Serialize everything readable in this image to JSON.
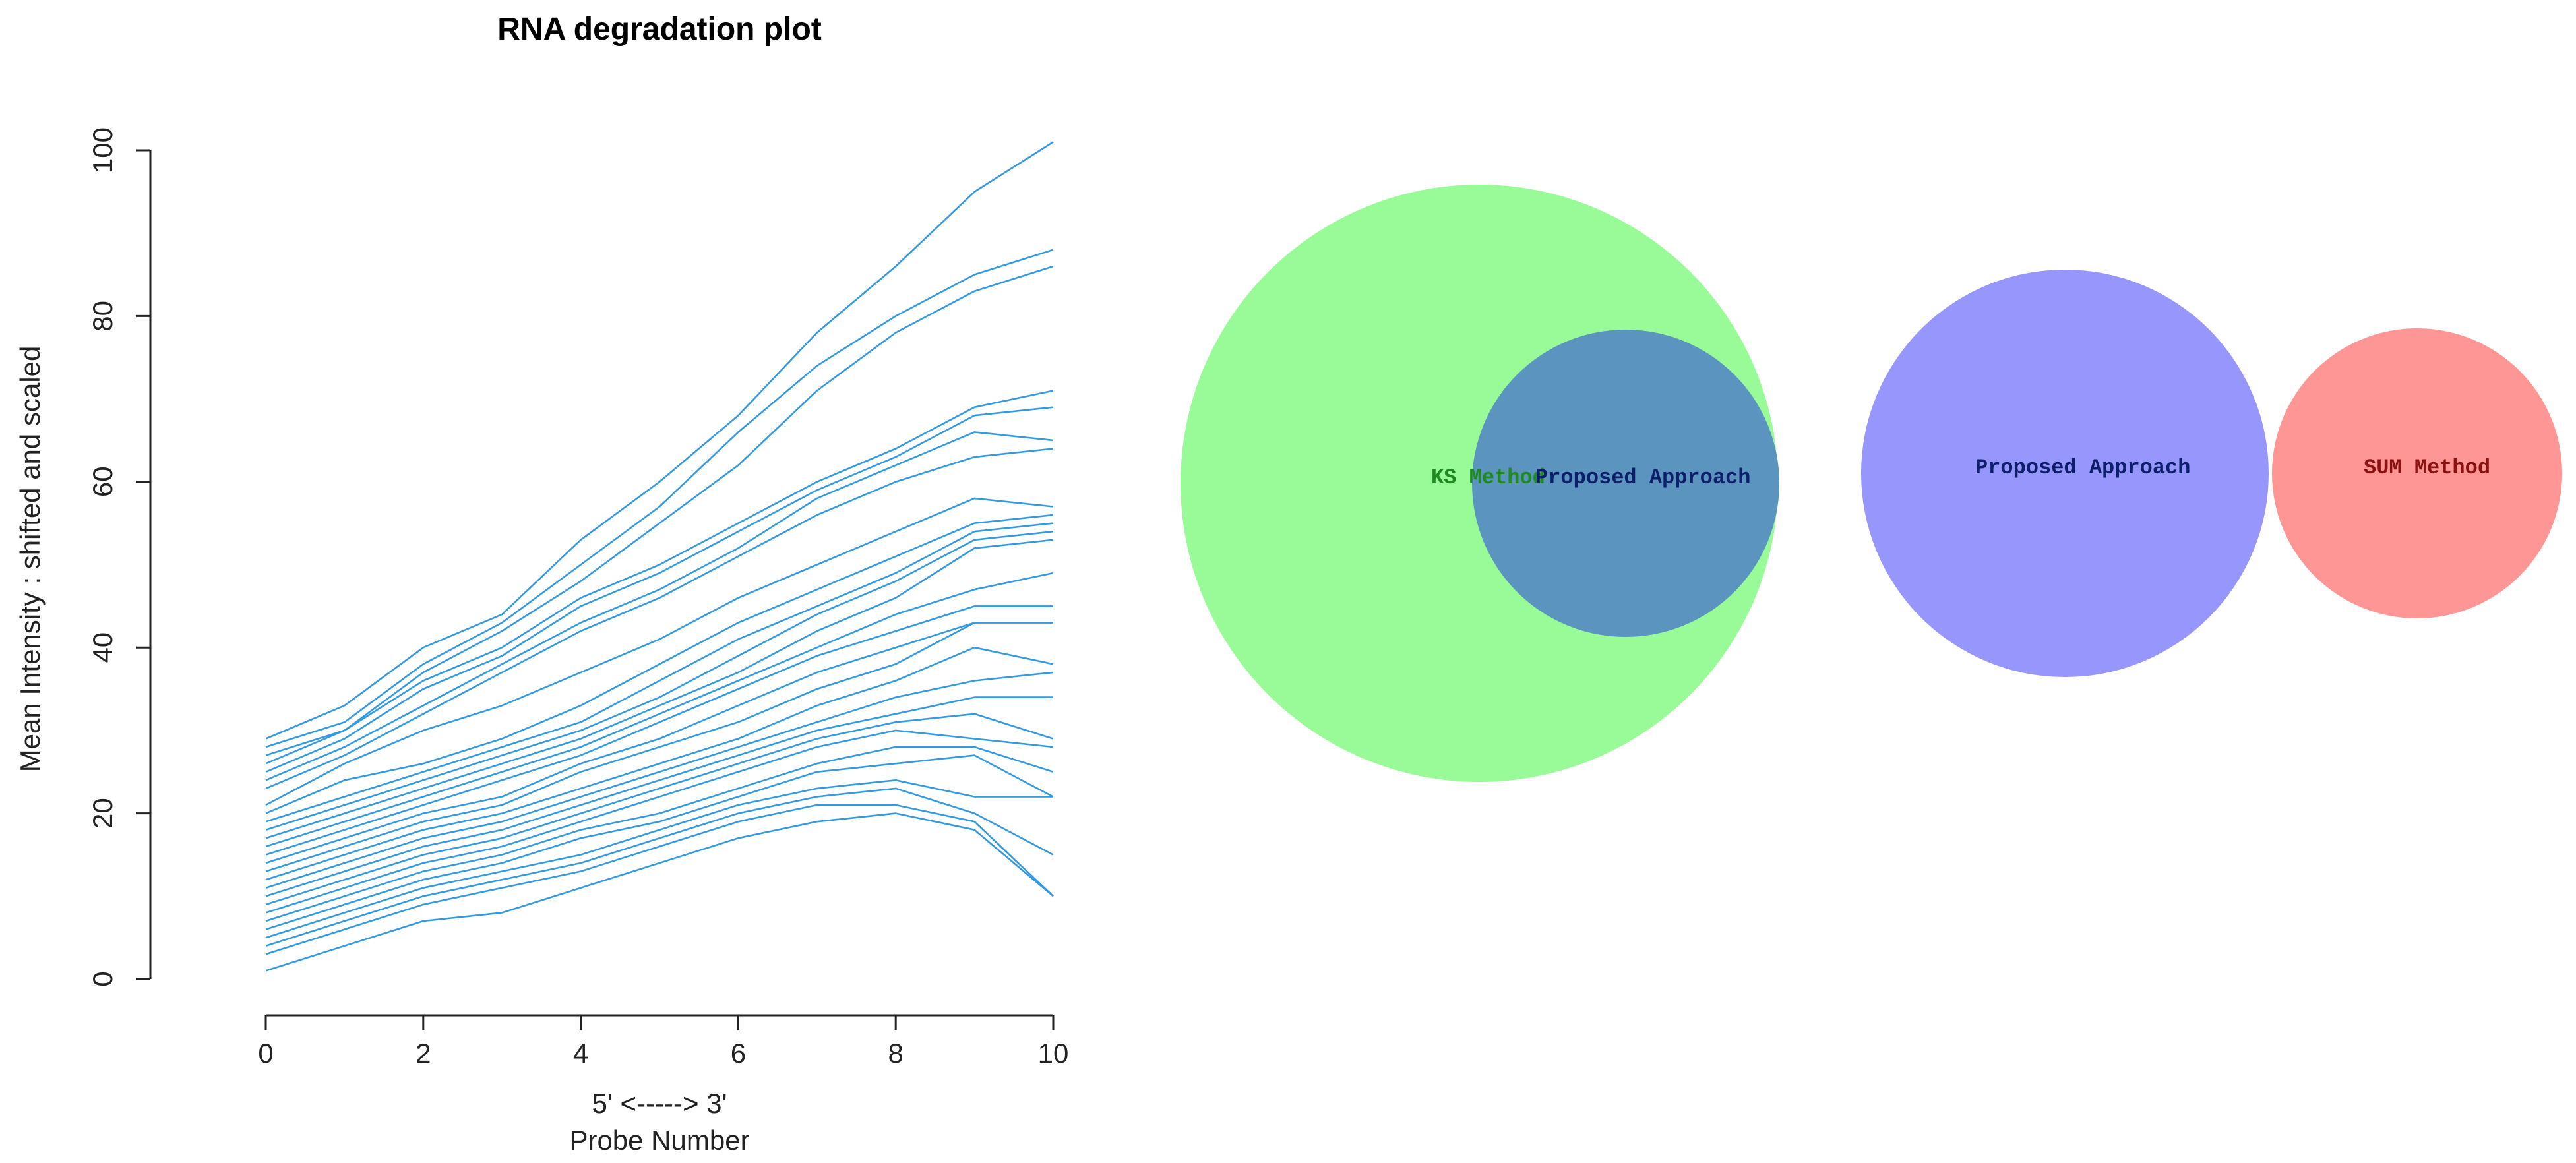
{
  "chart_data": [
    {
      "type": "line",
      "title": "RNA degradation plot",
      "xlabel_line1": "5' <-----> 3'",
      "xlabel_line2": "Probe Number",
      "ylabel": "Mean Intensity : shifted and scaled",
      "xlim": [
        0,
        10
      ],
      "ylim": [
        0,
        100
      ],
      "x_ticks": [
        "0",
        "2",
        "4",
        "6",
        "8",
        "10"
      ],
      "y_ticks": [
        "0",
        "20",
        "40",
        "60",
        "80",
        "100"
      ],
      "x": [
        0,
        1,
        2,
        3,
        4,
        5,
        6,
        7,
        8,
        9,
        10
      ],
      "line_color": "#3399e0",
      "series": [
        {
          "values": [
            29,
            33,
            40,
            44,
            53,
            60,
            68,
            78,
            86,
            95,
            101
          ]
        },
        {
          "values": [
            28,
            31,
            38,
            43,
            50,
            57,
            66,
            74,
            80,
            85,
            88
          ]
        },
        {
          "values": [
            27,
            30,
            37,
            42,
            48,
            55,
            62,
            71,
            78,
            83,
            86
          ]
        },
        {
          "values": [
            26,
            30,
            36,
            40,
            46,
            50,
            55,
            60,
            64,
            69,
            71
          ]
        },
        {
          "values": [
            25,
            29,
            35,
            39,
            45,
            49,
            54,
            59,
            63,
            68,
            69
          ]
        },
        {
          "values": [
            24,
            28,
            33,
            38,
            43,
            47,
            52,
            58,
            62,
            66,
            65
          ]
        },
        {
          "values": [
            23,
            27,
            32,
            37,
            42,
            46,
            51,
            56,
            60,
            63,
            64
          ]
        },
        {
          "values": [
            21,
            26,
            30,
            33,
            37,
            41,
            46,
            50,
            54,
            58,
            57
          ]
        },
        {
          "values": [
            20,
            24,
            26,
            29,
            33,
            38,
            43,
            47,
            51,
            55,
            56
          ]
        },
        {
          "values": [
            19,
            22,
            25,
            28,
            31,
            36,
            41,
            45,
            49,
            54,
            55
          ]
        },
        {
          "values": [
            18,
            21,
            24,
            27,
            30,
            34,
            39,
            44,
            48,
            53,
            54
          ]
        },
        {
          "values": [
            17,
            20,
            23,
            26,
            29,
            33,
            37,
            42,
            46,
            52,
            53
          ]
        },
        {
          "values": [
            16,
            19,
            22,
            25,
            28,
            32,
            36,
            40,
            44,
            47,
            49
          ]
        },
        {
          "values": [
            15,
            18,
            21,
            24,
            27,
            31,
            35,
            39,
            42,
            45,
            45
          ]
        },
        {
          "values": [
            14,
            17,
            20,
            22,
            26,
            29,
            33,
            37,
            40,
            43,
            43
          ]
        },
        {
          "values": [
            13,
            16,
            19,
            21,
            25,
            28,
            31,
            35,
            38,
            43,
            43
          ]
        },
        {
          "values": [
            12,
            15,
            18,
            20,
            23,
            26,
            29,
            33,
            36,
            40,
            38
          ]
        },
        {
          "values": [
            11,
            14,
            17,
            19,
            22,
            25,
            28,
            31,
            34,
            36,
            37
          ]
        },
        {
          "values": [
            10,
            13,
            16,
            18,
            21,
            24,
            27,
            30,
            32,
            34,
            34
          ]
        },
        {
          "values": [
            9,
            12,
            15,
            17,
            20,
            23,
            26,
            29,
            31,
            32,
            29
          ]
        },
        {
          "values": [
            8,
            11,
            14,
            16,
            19,
            22,
            25,
            28,
            30,
            29,
            28
          ]
        },
        {
          "values": [
            7,
            10,
            13,
            15,
            18,
            20,
            23,
            26,
            28,
            28,
            25
          ]
        },
        {
          "values": [
            6,
            9,
            12,
            14,
            17,
            19,
            22,
            25,
            26,
            27,
            22
          ]
        },
        {
          "values": [
            5,
            8,
            11,
            13,
            15,
            18,
            21,
            23,
            24,
            22,
            22
          ]
        },
        {
          "values": [
            4,
            7,
            10,
            12,
            14,
            17,
            20,
            22,
            23,
            20,
            15
          ]
        },
        {
          "values": [
            3,
            6,
            9,
            11,
            13,
            16,
            19,
            21,
            21,
            19,
            10
          ]
        },
        {
          "values": [
            1,
            4,
            7,
            8,
            11,
            14,
            17,
            19,
            20,
            18,
            10
          ]
        }
      ]
    },
    {
      "type": "venn",
      "sets": [
        {
          "label": "KS Method",
          "fill": "#98fb98",
          "text_color": "#1f8a1f"
        },
        {
          "label": "Proposed Approach",
          "fill": "#5a94bf",
          "text_color": "#0d1f6b"
        },
        {
          "label": "Proposed Approach",
          "fill": "#9696fc",
          "text_color": "#0d1f6b"
        },
        {
          "label": "SUM Method",
          "fill": "#ff9696",
          "text_color": "#8b1010"
        }
      ]
    }
  ]
}
